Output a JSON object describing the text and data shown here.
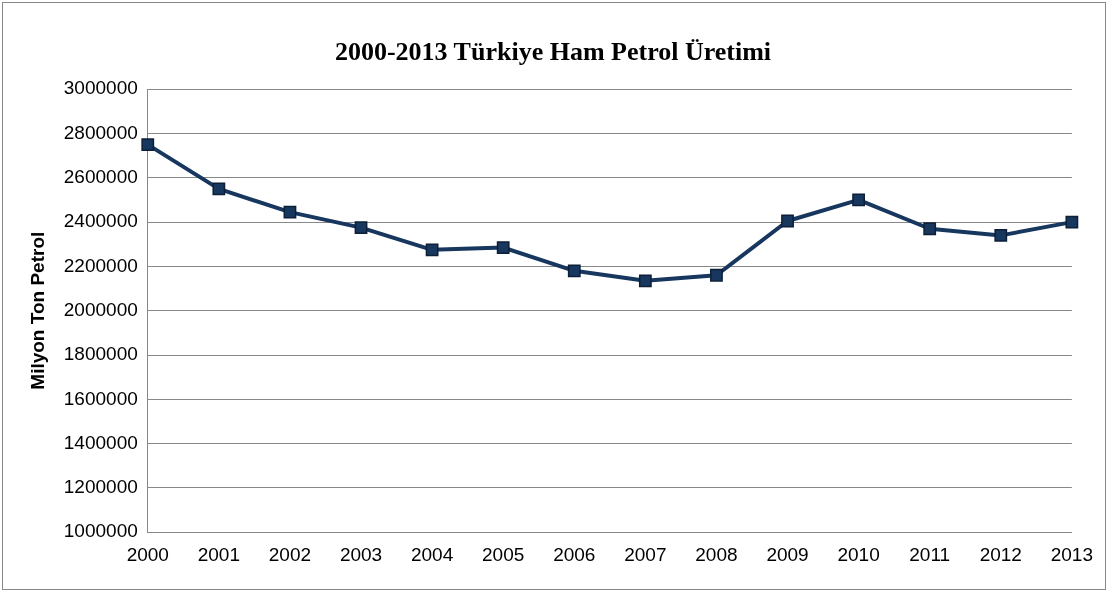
{
  "chart_data": {
    "type": "line",
    "title": "2000-2013 Türkiye Ham Petrol Üretimi",
    "ylabel": "Milyon Ton Petrol",
    "categories": [
      "2000",
      "2001",
      "2002",
      "2003",
      "2004",
      "2005",
      "2006",
      "2007",
      "2008",
      "2009",
      "2010",
      "2011",
      "2012",
      "2013"
    ],
    "series": [
      {
        "color": "#17375e",
        "values": [
          2750000,
          2550000,
          2445000,
          2375000,
          2275000,
          2285000,
          2180000,
          2135000,
          2160000,
          2405000,
          2500000,
          2370000,
          2340000,
          2400000
        ]
      }
    ],
    "ylim": [
      1000000,
      3000000
    ],
    "yticks": [
      1000000,
      1200000,
      1400000,
      1600000,
      1800000,
      2000000,
      2200000,
      2400000,
      2600000,
      2800000,
      3000000
    ],
    "grid": "y",
    "legend": false,
    "marker": "square",
    "line_style": "solid"
  }
}
